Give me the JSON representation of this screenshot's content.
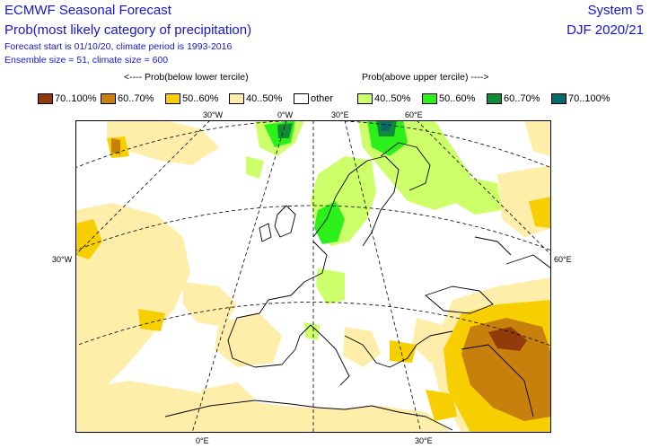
{
  "header": {
    "title": "ECMWF Seasonal Forecast",
    "subtitle": "Prob(most likely category of precipitation)",
    "line3": "Forecast start is 01/10/20, climate period is 1993-2016",
    "line4": "Ensemble size = 51, climate size = 600",
    "system": "System 5",
    "season": "DJF 2020/21"
  },
  "legend": {
    "below_heading": "<---- Prob(below lower tercile)",
    "above_heading": "Prob(above upper tercile) ---->",
    "items": [
      {
        "label": "70..100%",
        "color": "#933a0a"
      },
      {
        "label": "60..70%",
        "color": "#c8800c"
      },
      {
        "label": "50..60%",
        "color": "#f7cf00"
      },
      {
        "label": "40..50%",
        "color": "#feeeaa"
      },
      {
        "label": "other",
        "color": "#ffffff"
      },
      {
        "label": "40..50%",
        "color": "#cdff6a"
      },
      {
        "label": "50..60%",
        "color": "#2bf01a"
      },
      {
        "label": "60..70%",
        "color": "#0f8c35"
      },
      {
        "label": "70..100%",
        "color": "#046a6a"
      }
    ]
  },
  "map": {
    "top_ticks": [
      "30°W",
      "0°W",
      "30°E",
      "60°E"
    ],
    "left_tick": "30°W",
    "right_tick": "60°E",
    "bottom_ticks": [
      "0°E",
      "30°E"
    ]
  }
}
